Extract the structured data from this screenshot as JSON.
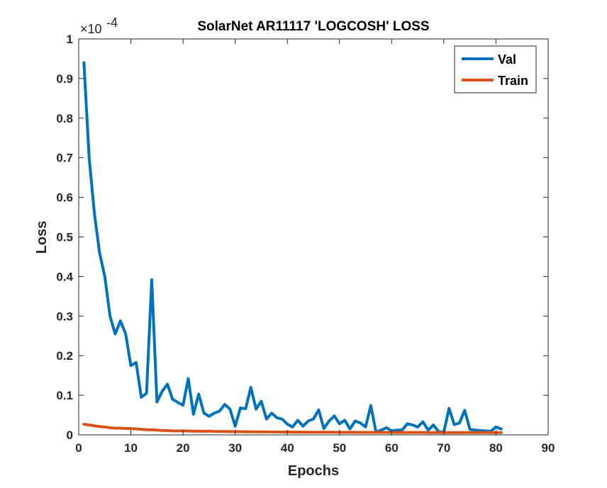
{
  "chart_data": {
    "type": "line",
    "title": "SolarNet AR11117 'LOGCOSH' LOSS",
    "xlabel": "Epochs",
    "ylabel": "Loss",
    "exponent_base": "×10",
    "exponent_power": "-4",
    "xlim": [
      0,
      90
    ],
    "ylim": [
      0,
      1
    ],
    "xticks": [
      "0",
      "10",
      "20",
      "30",
      "40",
      "50",
      "60",
      "70",
      "80",
      "90"
    ],
    "yticks": [
      "0",
      "0.1",
      "0.2",
      "0.3",
      "0.4",
      "0.5",
      "0.6",
      "0.7",
      "0.8",
      "0.9",
      "1"
    ],
    "legend_position": "top-right",
    "grid": false,
    "series": [
      {
        "name": "Val",
        "color": "#0072BD",
        "x": [
          1,
          2,
          3,
          4,
          5,
          6,
          7,
          8,
          9,
          10,
          11,
          12,
          13,
          14,
          15,
          16,
          17,
          18,
          19,
          20,
          21,
          22,
          23,
          24,
          25,
          26,
          27,
          28,
          29,
          30,
          31,
          32,
          33,
          34,
          35,
          36,
          37,
          38,
          39,
          40,
          41,
          42,
          43,
          44,
          45,
          46,
          47,
          48,
          49,
          50,
          51,
          52,
          53,
          54,
          55,
          56,
          57,
          58,
          59,
          60,
          61,
          62,
          63,
          64,
          65,
          66,
          67,
          68,
          69,
          70,
          71,
          72,
          73,
          74,
          75,
          76,
          77,
          78,
          79,
          80,
          81
        ],
        "values": [
          0.94,
          0.7,
          0.56,
          0.46,
          0.4,
          0.3,
          0.255,
          0.288,
          0.255,
          0.175,
          0.183,
          0.095,
          0.105,
          0.392,
          0.083,
          0.11,
          0.128,
          0.09,
          0.082,
          0.075,
          0.142,
          0.052,
          0.103,
          0.055,
          0.047,
          0.055,
          0.06,
          0.077,
          0.065,
          0.022,
          0.068,
          0.066,
          0.12,
          0.065,
          0.085,
          0.04,
          0.055,
          0.043,
          0.04,
          0.027,
          0.02,
          0.037,
          0.022,
          0.035,
          0.04,
          0.063,
          0.016,
          0.035,
          0.048,
          0.028,
          0.037,
          0.015,
          0.035,
          0.03,
          0.02,
          0.074,
          0.007,
          0.012,
          0.018,
          0.01,
          0.012,
          0.012,
          0.028,
          0.025,
          0.02,
          0.033,
          0.012,
          0.025,
          0.008,
          0.007,
          0.067,
          0.026,
          0.03,
          0.062,
          0.014,
          0.012,
          0.011,
          0.01,
          0.009,
          0.02,
          0.015
        ]
      },
      {
        "name": "Train",
        "color": "#D95319",
        "x": [
          1,
          2,
          3,
          4,
          5,
          6,
          7,
          8,
          9,
          10,
          11,
          12,
          13,
          14,
          15,
          16,
          17,
          18,
          19,
          20,
          21,
          22,
          23,
          24,
          25,
          26,
          27,
          28,
          29,
          30,
          31,
          32,
          33,
          34,
          35,
          36,
          37,
          38,
          39,
          40,
          41,
          42,
          43,
          44,
          45,
          46,
          47,
          48,
          49,
          50,
          51,
          52,
          53,
          54,
          55,
          56,
          57,
          58,
          59,
          60,
          61,
          62,
          63,
          64,
          65,
          66,
          67,
          68,
          69,
          70,
          71,
          72,
          73,
          74,
          75,
          76,
          77,
          78,
          79,
          80,
          81
        ],
        "values": [
          0.027,
          0.025,
          0.023,
          0.021,
          0.02,
          0.018,
          0.017,
          0.017,
          0.016,
          0.016,
          0.015,
          0.014,
          0.013,
          0.013,
          0.012,
          0.011,
          0.011,
          0.01,
          0.01,
          0.01,
          0.0098,
          0.0095,
          0.0093,
          0.009,
          0.0095,
          0.0088,
          0.0085,
          0.0085,
          0.0083,
          0.0082,
          0.008,
          0.0079,
          0.0078,
          0.0077,
          0.0076,
          0.0075,
          0.0074,
          0.0073,
          0.0072,
          0.0071,
          0.007,
          0.007,
          0.0069,
          0.0068,
          0.0068,
          0.0067,
          0.0067,
          0.0066,
          0.0066,
          0.0065,
          0.0065,
          0.0064,
          0.0064,
          0.0063,
          0.0063,
          0.0063,
          0.0062,
          0.0062,
          0.0062,
          0.0061,
          0.0061,
          0.0061,
          0.006,
          0.006,
          0.006,
          0.006,
          0.0059,
          0.0059,
          0.0059,
          0.0059,
          0.0058,
          0.0058,
          0.0058,
          0.0058,
          0.0058,
          0.0057,
          0.0057,
          0.0057,
          0.0057,
          0.0057,
          0.0057
        ]
      }
    ]
  }
}
